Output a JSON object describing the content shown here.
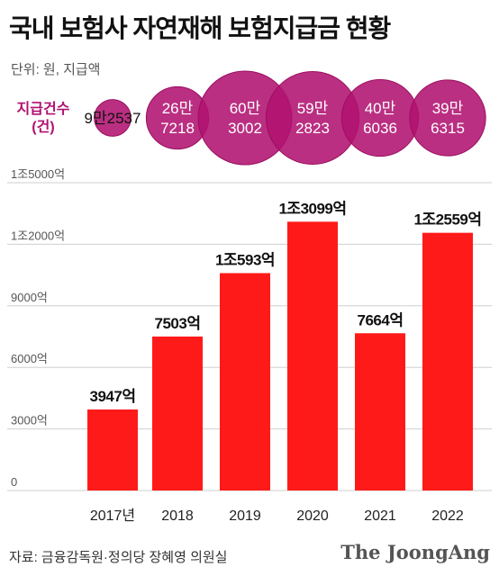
{
  "header": {
    "title": "국내 보험사 자연재해 보험지급금 현황",
    "unit": "단위: 원, 지급액"
  },
  "bubbles": {
    "label_line1": "지급건수",
    "label_line2": "(건)",
    "color": "#b01270",
    "items": [
      {
        "year": "2017년",
        "line1": "9만",
        "line2": "2537",
        "count": 92537
      },
      {
        "year": "2018",
        "line1": "26만",
        "line2": "7218",
        "count": 267218
      },
      {
        "year": "2019",
        "line1": "60만",
        "line2": "3002",
        "count": 603002
      },
      {
        "year": "2020",
        "line1": "59만",
        "line2": "2823",
        "count": 592823
      },
      {
        "year": "2021",
        "line1": "40만",
        "line2": "6036",
        "count": 406036
      },
      {
        "year": "2022",
        "line1": "39만",
        "line2": "6315",
        "count": 396315
      }
    ]
  },
  "chart_data": {
    "type": "bar",
    "categories": [
      "2017년",
      "2018",
      "2019",
      "2020",
      "2021",
      "2022"
    ],
    "values": [
      3947,
      7503,
      10593,
      13099,
      7664,
      12559
    ],
    "value_labels": [
      "3947억",
      "7503억",
      "1조593억",
      "1조3099억",
      "7664억",
      "1조2559억"
    ],
    "ylim": [
      0,
      15000
    ],
    "yticks": [
      0,
      3000,
      6000,
      9000,
      12000,
      15000
    ],
    "ytick_labels": [
      "0",
      "3000억",
      "6000억",
      "9000억",
      "1조2000억",
      "1조5000억"
    ],
    "grid": true,
    "bar_color": "#ff1a1a"
  },
  "footer": {
    "source": "자료: 금융감독원·정의당 장혜영 의원실",
    "brand": "The JoongAng"
  }
}
